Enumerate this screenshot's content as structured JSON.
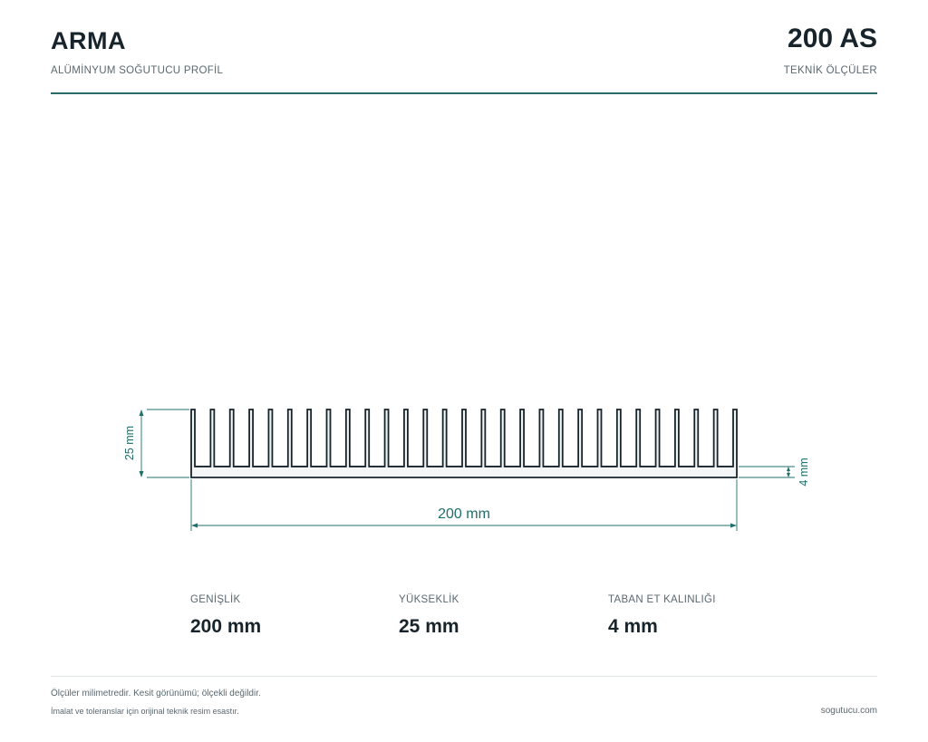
{
  "header": {
    "brand": "ARMA",
    "subtitle": "ALÜMİNYUM SOĞUTUCU PROFİL",
    "code": "200 AS",
    "code_sub": "TEKNİK ÖLÇÜLER"
  },
  "drawing": {
    "width_label": "200 mm",
    "height_label": "25 mm",
    "base_label": "4 mm",
    "width_mm": 200,
    "height_mm": 25,
    "base_mm": 4,
    "fin_count": 29,
    "colors": {
      "outline": "#17242b",
      "dimension": "#1f6f6b",
      "fill": "#f3f5f6"
    }
  },
  "specs": [
    {
      "label": "GENİŞLİK",
      "value": "200 mm"
    },
    {
      "label": "YÜKSEKLİK",
      "value": "25 mm"
    },
    {
      "label": "TABAN ET KALINLIĞI",
      "value": "4 mm"
    }
  ],
  "footer": {
    "note1": "Ölçüler milimetredir. Kesit görünümü; ölçekli değildir.",
    "note2": "İmalat ve toleranslar için orijinal teknik resim esastır.",
    "site": "sogutucu.com"
  }
}
